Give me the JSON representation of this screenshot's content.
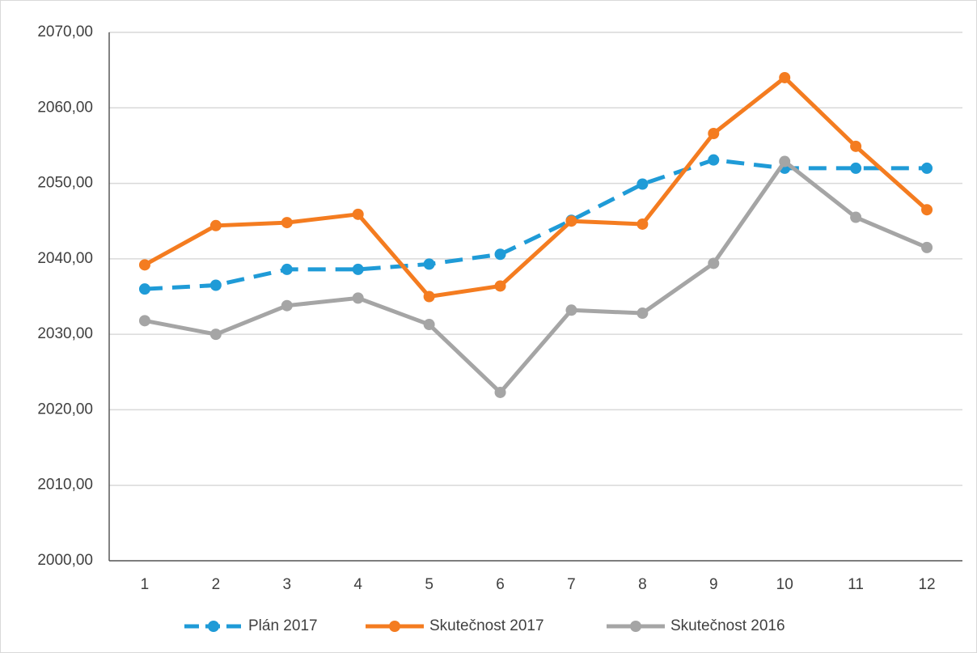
{
  "chart_data": {
    "type": "line",
    "categories": [
      "1",
      "2",
      "3",
      "4",
      "5",
      "6",
      "7",
      "8",
      "9",
      "10",
      "11",
      "12"
    ],
    "series": [
      {
        "name": "Plán 2017",
        "color": "#1f9bd7",
        "dashed": true,
        "values": [
          2036.0,
          2036.5,
          2038.6,
          2038.6,
          2039.3,
          2040.6,
          2045.1,
          2049.9,
          2053.1,
          2052.0,
          2052.0,
          2052.0
        ]
      },
      {
        "name": "Skutečnost 2017",
        "color": "#f47c20",
        "dashed": false,
        "values": [
          2039.2,
          2044.4,
          2044.8,
          2045.9,
          2035.0,
          2036.4,
          2045.0,
          2044.6,
          2056.6,
          2064.0,
          2054.9,
          2046.5
        ]
      },
      {
        "name": "Skutečnost 2016",
        "color": "#a5a5a5",
        "dashed": false,
        "values": [
          2031.8,
          2030.0,
          2033.8,
          2034.8,
          2031.3,
          2022.3,
          2033.2,
          2032.8,
          2039.4,
          2052.9,
          2045.5,
          2041.5
        ]
      }
    ],
    "ylim": [
      2000,
      2070
    ],
    "yticks": [
      {
        "value": 2000,
        "label": "2000,00"
      },
      {
        "value": 2010,
        "label": "2010,00"
      },
      {
        "value": 2020,
        "label": "2020,00"
      },
      {
        "value": 2030,
        "label": "2030,00"
      },
      {
        "value": 2040,
        "label": "2040,00"
      },
      {
        "value": 2050,
        "label": "2050,00"
      },
      {
        "value": 2060,
        "label": "2060,00"
      },
      {
        "value": 2070,
        "label": "2070,00"
      }
    ],
    "grid": true,
    "legend": "bottom"
  }
}
